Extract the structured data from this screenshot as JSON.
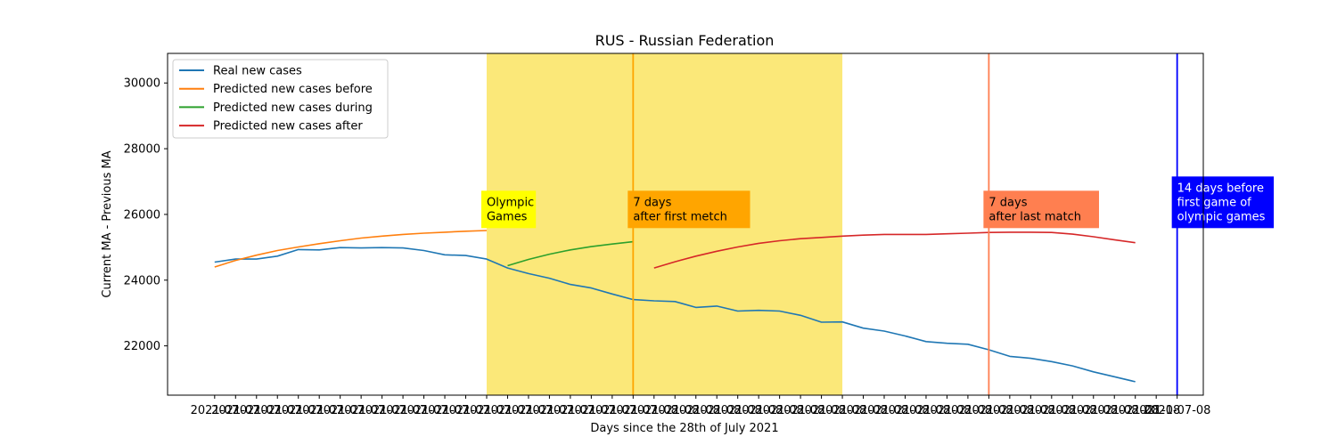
{
  "chart_data": {
    "type": "line",
    "title": "RUS - Russian Federation",
    "xlabel": "Days since the 28th of July 2021",
    "ylabel": "Current MA - Previous MA",
    "ylim": [
      20500,
      30900
    ],
    "xlim": [
      -2.25,
      47.25
    ],
    "yticks": [
      22000,
      24000,
      26000,
      28000,
      30000
    ],
    "x_tick_labels": [
      "2021-07",
      "2021-07",
      "2021-07",
      "2021-07",
      "2021-07",
      "2021-07",
      "2021-07",
      "2021-07",
      "2021-07",
      "2021-07",
      "2021-07",
      "2021-07",
      "2021-07",
      "2021-07",
      "2021-07",
      "2021-07",
      "2021-07",
      "2021-07",
      "2021-07",
      "2021-07",
      "2021-07",
      "2021-08",
      "2021-08",
      "2021-08",
      "2021-08",
      "2021-08",
      "2021-08",
      "2021-08",
      "2021-08",
      "2021-08",
      "2021-08",
      "2021-08",
      "2021-08",
      "2021-08",
      "2021-08",
      "2021-08",
      "2021-08",
      "2021-08",
      "2021-08",
      "2021-08",
      "2021-08",
      "2021-08",
      "2021-08",
      "2021-08",
      "2021-08",
      "2021-08",
      "2021-07-08"
    ],
    "grid": false,
    "legend_position": "top-left",
    "series": [
      {
        "name": "Real new cases",
        "color": "#1f77b4",
        "x": [
          0,
          1,
          2,
          3,
          4,
          5,
          6,
          7,
          8,
          9,
          10,
          11,
          12,
          13,
          14,
          15,
          16,
          17,
          18,
          19,
          20,
          21,
          22,
          23,
          24,
          25,
          26,
          27,
          28,
          29,
          30,
          31,
          32,
          33,
          34,
          35,
          36,
          37,
          38,
          39,
          40,
          41,
          42,
          43,
          44
        ],
        "y": [
          24550,
          24640,
          24640,
          24730,
          24930,
          24920,
          24990,
          24980,
          24990,
          24980,
          24900,
          24770,
          24750,
          24640,
          24370,
          24200,
          24060,
          23870,
          23760,
          23580,
          23410,
          23370,
          23350,
          23170,
          23210,
          23060,
          23080,
          23060,
          22930,
          22720,
          22730,
          22540,
          22450,
          22300,
          22130,
          22080,
          22050,
          21880,
          21680,
          21620,
          21520,
          21390,
          21210,
          21060,
          20910
        ]
      },
      {
        "name": "Predicted new cases before",
        "color": "#ff7f0e",
        "x": [
          0,
          1,
          2,
          3,
          4,
          5,
          6,
          7,
          8,
          9,
          10,
          11,
          12,
          13
        ],
        "y": [
          24400,
          24600,
          24760,
          24900,
          25010,
          25110,
          25200,
          25280,
          25340,
          25390,
          25430,
          25460,
          25490,
          25510
        ]
      },
      {
        "name": "Predicted new cases during",
        "color": "#2ca02c",
        "x": [
          14,
          15,
          16,
          17,
          18,
          19,
          20
        ],
        "y": [
          24440,
          24630,
          24790,
          24920,
          25020,
          25100,
          25170
        ]
      },
      {
        "name": "Predicted new cases after",
        "color": "#d62728",
        "x": [
          21,
          22,
          23,
          24,
          25,
          26,
          27,
          28,
          29,
          30,
          31,
          32,
          33,
          34,
          35,
          36,
          37,
          38,
          39,
          40,
          41,
          42,
          43,
          44
        ],
        "y": [
          24370,
          24560,
          24730,
          24880,
          25010,
          25120,
          25200,
          25260,
          25300,
          25340,
          25370,
          25390,
          25390,
          25390,
          25410,
          25430,
          25450,
          25460,
          25460,
          25450,
          25400,
          25320,
          25230,
          25140
        ]
      }
    ],
    "shaded_region": {
      "x_start": 13,
      "x_end": 30,
      "color": "#fbe879"
    },
    "vlines": [
      {
        "x": 20,
        "color": "#ffa500"
      },
      {
        "x": 37,
        "color": "#ff7f50"
      },
      {
        "x": 46,
        "color": "#0000ff"
      }
    ],
    "annotations": [
      {
        "lines": [
          "Olympic",
          "Games"
        ],
        "x": 13,
        "y": 25800,
        "bg": "#ffff00",
        "fg": "#000000"
      },
      {
        "lines": [
          "7 days",
          "after first metch"
        ],
        "x": 20,
        "y": 25800,
        "bg": "#ffa500",
        "fg": "#000000"
      },
      {
        "lines": [
          "7 days",
          "after last match"
        ],
        "x": 37,
        "y": 25800,
        "bg": "#ff7f50",
        "fg": "#000000"
      },
      {
        "lines": [
          "14 days before",
          "first game of",
          "olympic games"
        ],
        "x": 46,
        "y": 25800,
        "bg": "#0000ff",
        "fg": "#ffffff"
      }
    ]
  }
}
